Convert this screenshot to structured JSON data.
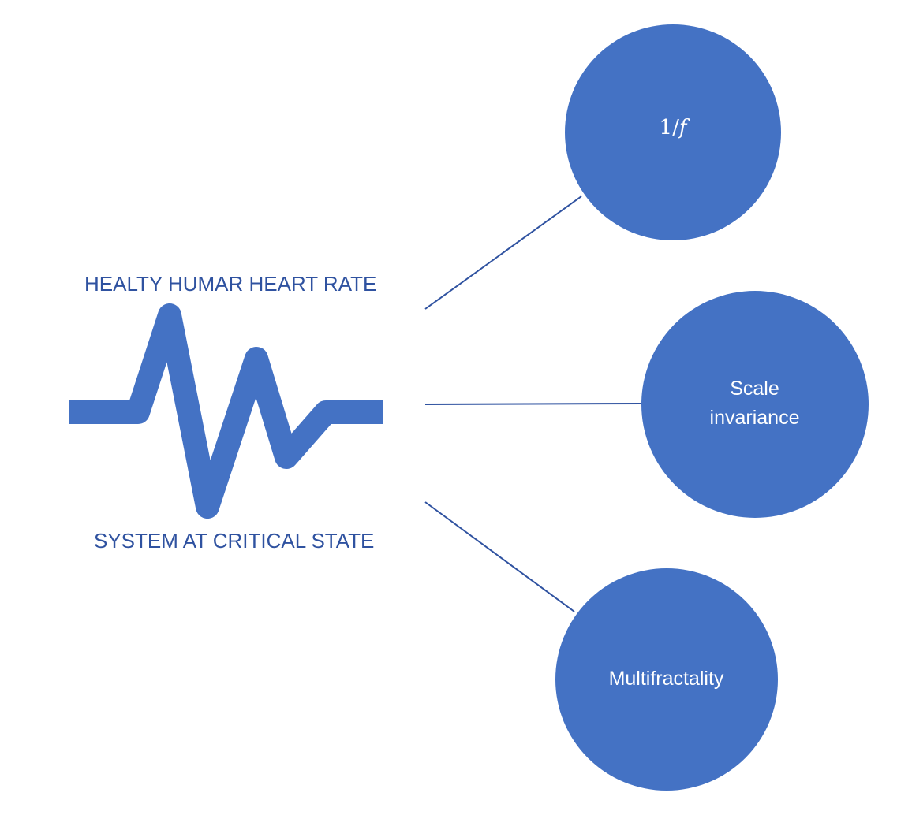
{
  "source": {
    "title_top": "HEALTY HUMAR HEART RATE",
    "title_bottom": "SYSTEM AT CRITICAL STATE",
    "icon": "heartbeat-pulse-icon"
  },
  "nodes": [
    {
      "id": "1f",
      "label": "1/f"
    },
    {
      "id": "scale",
      "label_line1": "Scale",
      "label_line2": "invariance"
    },
    {
      "id": "multi",
      "label": "Multifractality"
    }
  ],
  "colors": {
    "node_fill": "#4472c4",
    "pulse_stroke": "#4472c4",
    "connector": "#2f52a0",
    "caption_text": "#2f52a0",
    "node_text": "#ffffff"
  }
}
